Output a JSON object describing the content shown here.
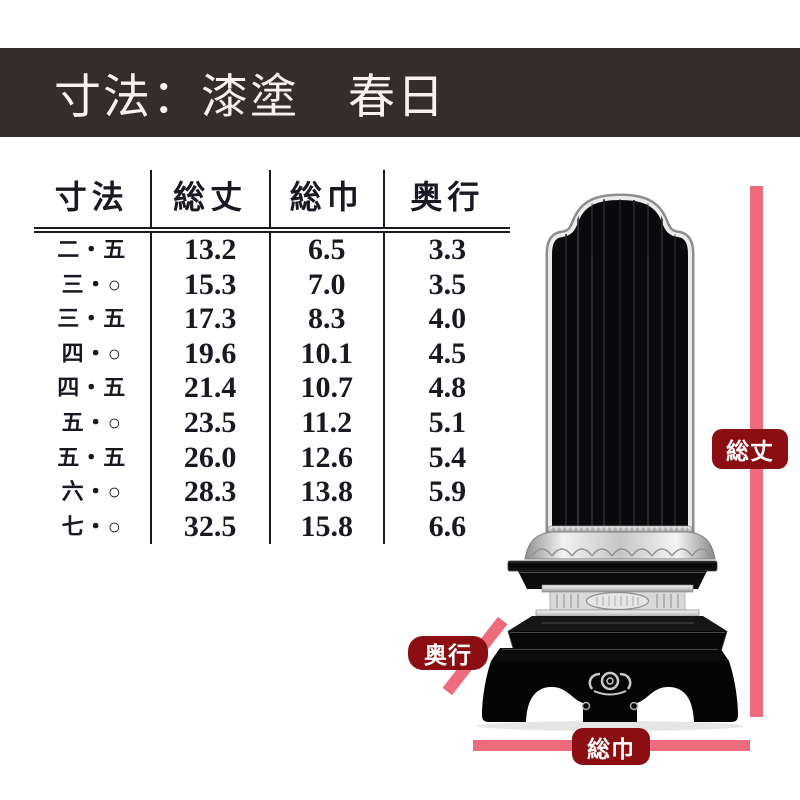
{
  "header": {
    "title": "寸法：漆塗　春日"
  },
  "table": {
    "columns": [
      "寸法",
      "総丈",
      "総巾",
      "奥行"
    ],
    "rows": [
      [
        "二・五",
        "13.2",
        "6.5",
        "3.3"
      ],
      [
        "三・○",
        "15.3",
        "7.0",
        "3.5"
      ],
      [
        "三・五",
        "17.3",
        "8.3",
        "4.0"
      ],
      [
        "四・○",
        "19.6",
        "10.1",
        "4.5"
      ],
      [
        "四・五",
        "21.4",
        "10.7",
        "4.8"
      ],
      [
        "五・○",
        "23.5",
        "11.2",
        "5.1"
      ],
      [
        "五・五",
        "26.0",
        "12.6",
        "5.4"
      ],
      [
        "六・○",
        "28.3",
        "13.8",
        "5.9"
      ],
      [
        "七・○",
        "32.5",
        "15.8",
        "6.6"
      ]
    ]
  },
  "diagram": {
    "height_label": "総丈",
    "depth_label": "奥行",
    "width_label": "総巾",
    "photo_icon": "black-lacquer-memorial-tablet-photo"
  },
  "colors": {
    "header_bg": "#352d29",
    "header_text": "#f5f2ef",
    "table_text": "#191921",
    "measure_band": "#ec6b7d",
    "measure_label_bg": "#8b0e13",
    "measure_label_text": "#ffffff"
  }
}
